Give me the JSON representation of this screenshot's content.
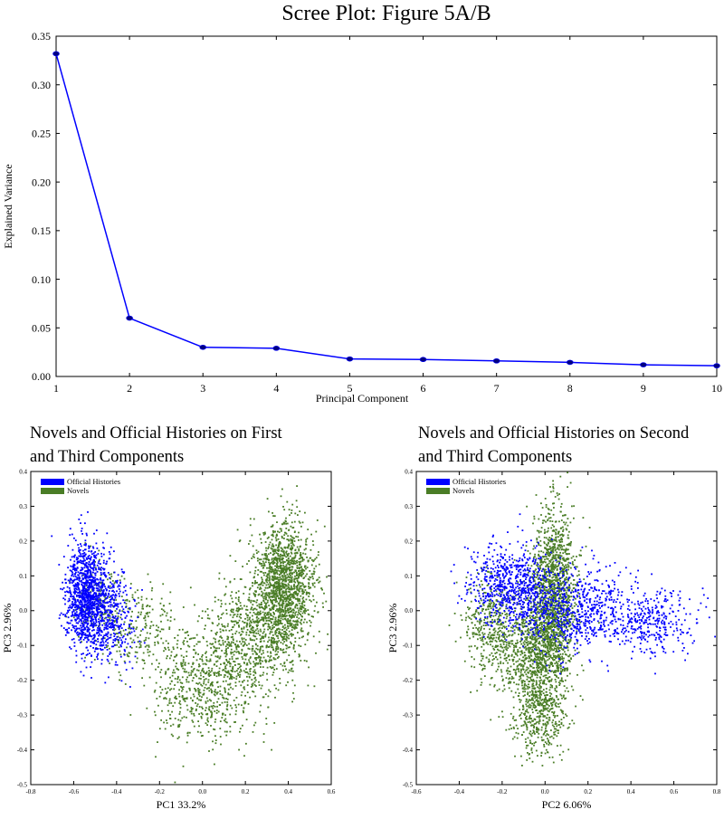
{
  "chart_data": [
    {
      "type": "line",
      "title": "Scree Plot: Figure 5A/B",
      "xlabel": "Principal Component",
      "ylabel": "Explained Variance",
      "x": [
        1,
        2,
        3,
        4,
        5,
        6,
        7,
        8,
        9,
        10
      ],
      "series": [
        {
          "values": [
            0.332,
            0.06,
            0.03,
            0.029,
            0.018,
            0.0175,
            0.016,
            0.0145,
            0.012,
            0.011
          ]
        }
      ],
      "xlim": [
        1,
        10
      ],
      "ylim": [
        0.0,
        0.35
      ],
      "xticks": [
        "1",
        "2",
        "3",
        "4",
        "5",
        "6",
        "7",
        "8",
        "9",
        "10"
      ],
      "yticks": [
        "0.00",
        "0.05",
        "0.10",
        "0.15",
        "0.20",
        "0.25",
        "0.30",
        "0.35"
      ],
      "grid": false,
      "colors": {
        "line": "#0000ff",
        "marker": "#000080"
      }
    },
    {
      "type": "scatter",
      "title": [
        "Novels and Official Histories on First",
        " and Third Components"
      ],
      "xlabel": "PC1 33.2%",
      "ylabel": "PC3 2.96%",
      "xlim": [
        -0.8,
        0.6
      ],
      "ylim": [
        -0.5,
        0.4
      ],
      "xticks": [
        "-0.8",
        "-0.6",
        "-0.4",
        "-0.2",
        "0.0",
        "0.2",
        "0.4",
        "0.6"
      ],
      "yticks": [
        "-0.5",
        "-0.4",
        "-0.3",
        "-0.2",
        "-0.1",
        "0.0",
        "0.1",
        "0.2",
        "0.3",
        "0.4"
      ],
      "legend": {
        "placement": "top-left",
        "entries": [
          "Official Histories",
          "Novels"
        ]
      },
      "series": [
        {
          "name": "Official Histories",
          "color": "#0000ff",
          "clusters": [
            {
              "cx": -0.54,
              "cy": 0.04,
              "sx": 0.05,
              "sy": 0.075,
              "n": 1100
            },
            {
              "cx": -0.43,
              "cy": -0.02,
              "sx": 0.06,
              "sy": 0.07,
              "n": 350
            }
          ]
        },
        {
          "name": "Novels",
          "color": "#4a7d26",
          "clusters": [
            {
              "cx": 0.38,
              "cy": 0.07,
              "sx": 0.07,
              "sy": 0.095,
              "n": 1500
            },
            {
              "cx": 0.22,
              "cy": -0.08,
              "sx": 0.1,
              "sy": 0.09,
              "n": 700
            },
            {
              "cx": 0.0,
              "cy": -0.22,
              "sx": 0.12,
              "sy": 0.08,
              "n": 600
            },
            {
              "cx": -0.3,
              "cy": -0.05,
              "sx": 0.1,
              "sy": 0.06,
              "n": 250
            },
            {
              "cx": -0.5,
              "cy": 0.03,
              "sx": 0.05,
              "sy": 0.06,
              "n": 120
            }
          ]
        }
      ]
    },
    {
      "type": "scatter",
      "title": [
        "Novels and Official Histories on Second",
        " and Third Components"
      ],
      "xlabel": "PC2 6.06%",
      "ylabel": "PC3 2.96%",
      "xlim": [
        -0.6,
        0.8
      ],
      "ylim": [
        -0.5,
        0.4
      ],
      "xticks": [
        "-0.6",
        "-0.4",
        "-0.2",
        "0.0",
        "0.2",
        "0.4",
        "0.6",
        "0.8"
      ],
      "yticks": [
        "-0.5",
        "-0.4",
        "-0.3",
        "-0.2",
        "-0.1",
        "0.0",
        "0.1",
        "0.2",
        "0.3",
        "0.4"
      ],
      "legend": {
        "placement": "top-left",
        "entries": [
          "Official Histories",
          "Novels"
        ]
      },
      "series": [
        {
          "name": "Official Histories",
          "color": "#0000ff",
          "clusters": [
            {
              "cx": -0.15,
              "cy": 0.07,
              "sx": 0.1,
              "sy": 0.06,
              "n": 700
            },
            {
              "cx": 0.15,
              "cy": 0.0,
              "sx": 0.12,
              "sy": 0.06,
              "n": 600
            },
            {
              "cx": 0.48,
              "cy": -0.03,
              "sx": 0.11,
              "sy": 0.05,
              "n": 350
            }
          ]
        },
        {
          "name": "Novels",
          "color": "#4a7d26",
          "clusters": [
            {
              "cx": 0.04,
              "cy": 0.05,
              "sx": 0.05,
              "sy": 0.12,
              "n": 1400
            },
            {
              "cx": -0.05,
              "cy": -0.12,
              "sx": 0.08,
              "sy": 0.09,
              "n": 900
            },
            {
              "cx": -0.02,
              "cy": -0.3,
              "sx": 0.06,
              "sy": 0.06,
              "n": 400
            },
            {
              "cx": -0.25,
              "cy": -0.05,
              "sx": 0.06,
              "sy": 0.07,
              "n": 400
            }
          ]
        }
      ]
    }
  ]
}
